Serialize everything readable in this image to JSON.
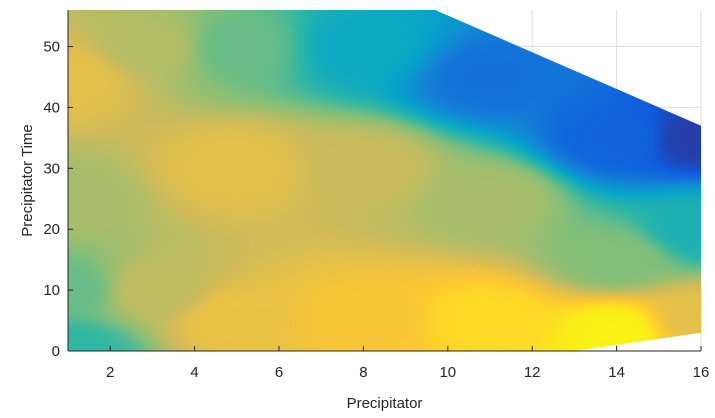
{
  "chart_data": {
    "type": "heatmap",
    "style": "filled surface, view from top, parula colormap",
    "title": "",
    "xlabel": "Precipitator",
    "ylabel": "Precipitator Time",
    "xlim": [
      1,
      16
    ],
    "ylim": [
      0,
      56
    ],
    "xticks": [
      2,
      4,
      6,
      8,
      10,
      12,
      14,
      16
    ],
    "yticks": [
      0,
      10,
      20,
      30,
      40,
      50
    ],
    "grid": true,
    "colormap": [
      "#352a87",
      "#0f5cdd",
      "#1481d6",
      "#06a4ca",
      "#2eb7a4",
      "#87bf77",
      "#d1bb59",
      "#fec832",
      "#f9fb0e"
    ],
    "surface_boundary": [
      [
        1,
        56
      ],
      [
        9.7,
        56
      ],
      [
        16,
        37
      ],
      [
        16,
        3
      ],
      [
        13,
        0
      ],
      [
        1,
        0
      ]
    ],
    "value_samples": [
      {
        "x": 1,
        "y": 0,
        "value": 0.5
      },
      {
        "x": 1,
        "y": 10,
        "value": 0.58
      },
      {
        "x": 1,
        "y": 25,
        "value": 0.68
      },
      {
        "x": 1,
        "y": 45,
        "value": 0.8
      },
      {
        "x": 3,
        "y": 10,
        "value": 0.72
      },
      {
        "x": 3,
        "y": 50,
        "value": 0.7
      },
      {
        "x": 5,
        "y": 5,
        "value": 0.82
      },
      {
        "x": 5,
        "y": 30,
        "value": 0.8
      },
      {
        "x": 5,
        "y": 50,
        "value": 0.58
      },
      {
        "x": 8,
        "y": 5,
        "value": 0.86
      },
      {
        "x": 8,
        "y": 30,
        "value": 0.74
      },
      {
        "x": 8,
        "y": 50,
        "value": 0.4
      },
      {
        "x": 11,
        "y": 5,
        "value": 0.92
      },
      {
        "x": 11,
        "y": 25,
        "value": 0.68
      },
      {
        "x": 11,
        "y": 45,
        "value": 0.2
      },
      {
        "x": 14,
        "y": 3,
        "value": 0.98
      },
      {
        "x": 14,
        "y": 15,
        "value": 0.62
      },
      {
        "x": 14,
        "y": 35,
        "value": 0.15
      },
      {
        "x": 16,
        "y": 5,
        "value": 0.8
      },
      {
        "x": 16,
        "y": 20,
        "value": 0.45
      },
      {
        "x": 16,
        "y": 35,
        "value": 0.05
      }
    ]
  }
}
